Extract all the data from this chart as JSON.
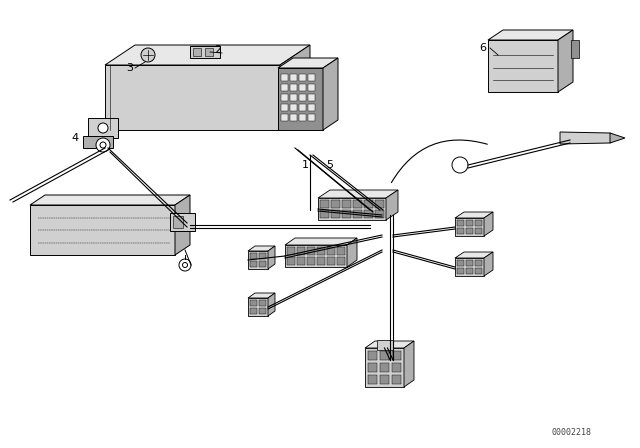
{
  "bg_color": "#ffffff",
  "lc": "#000000",
  "fig_width": 6.4,
  "fig_height": 4.48,
  "dpi": 100,
  "watermark": "00002218",
  "lw": 0.7
}
